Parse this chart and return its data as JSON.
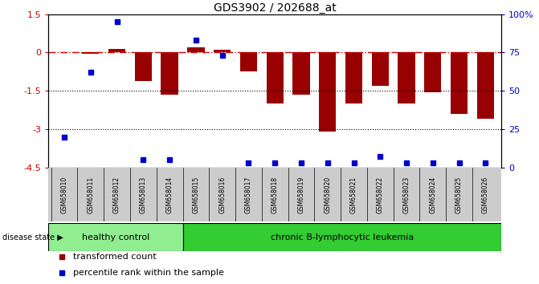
{
  "title": "GDS3902 / 202688_at",
  "samples": [
    "GSM658010",
    "GSM658011",
    "GSM658012",
    "GSM658013",
    "GSM658014",
    "GSM658015",
    "GSM658016",
    "GSM658017",
    "GSM658018",
    "GSM658019",
    "GSM658020",
    "GSM658021",
    "GSM658022",
    "GSM658023",
    "GSM658024",
    "GSM658025",
    "GSM658026"
  ],
  "bar_values": [
    0.0,
    -0.05,
    0.15,
    -1.1,
    -1.65,
    0.2,
    0.1,
    -0.75,
    -2.0,
    -1.65,
    -3.1,
    -2.0,
    -1.3,
    -2.0,
    -1.55,
    -2.4,
    -2.6
  ],
  "percentile_values": [
    20,
    62,
    95,
    5,
    5,
    83,
    73,
    3,
    3,
    3,
    3,
    3,
    7,
    3,
    3,
    3,
    3
  ],
  "ylim_left": [
    -4.5,
    1.5
  ],
  "yticks_left": [
    1.5,
    0,
    -1.5,
    -3,
    -4.5
  ],
  "ytick_labels_left": [
    "1.5",
    "0",
    "-1.5",
    "-3",
    "-4.5"
  ],
  "ylim_right": [
    0,
    100
  ],
  "yticks_right": [
    0,
    25,
    50,
    75,
    100
  ],
  "ytick_labels_right": [
    "0",
    "25",
    "50",
    "75",
    "100%"
  ],
  "hline_y": 0,
  "dotted_lines": [
    -1.5,
    -3
  ],
  "bar_color": "#990000",
  "blue_color": "#0000cc",
  "hline_color": "#cc0000",
  "healthy_control_label": "healthy control",
  "leukemia_label": "chronic B-lymphocytic leukemia",
  "healthy_count": 5,
  "disease_state_label": "disease state",
  "legend_bar_label": "transformed count",
  "legend_dot_label": "percentile rank within the sample",
  "healthy_color": "#90ee90",
  "leukemia_color": "#33cc33",
  "tick_area_color": "#cccccc"
}
